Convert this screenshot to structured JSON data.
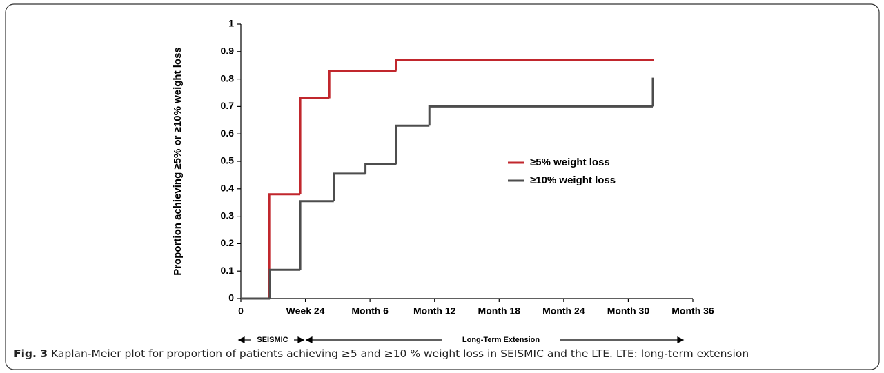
{
  "chart_data": {
    "type": "step",
    "y_label": "Proportion achieving ≥5% or ≥10% weight loss",
    "xlim": [
      0,
      7
    ],
    "xticks": [
      0,
      {
        "value": 1,
        "label": "Week 24"
      },
      {
        "value": 2,
        "label": "Month 6"
      },
      {
        "value": 3,
        "label": "Month 12"
      },
      {
        "value": 4,
        "label": "Month 18"
      },
      {
        "value": 5,
        "label": "Month 24"
      },
      {
        "value": 6,
        "label": "Month 30"
      },
      {
        "value": 7,
        "label": "Month 36"
      }
    ],
    "ylim": [
      0,
      1
    ],
    "yticks": [
      0,
      0.1,
      0.2,
      0.3,
      0.4,
      0.5,
      0.6,
      0.7,
      0.8,
      0.9,
      1
    ],
    "series": [
      {
        "name": "≥5% weight loss",
        "color": "#c1272d",
        "x": [
          0,
          0.44,
          0.92,
          1.37,
          2.41,
          6.4
        ],
        "values": [
          0,
          0.38,
          0.73,
          0.83,
          0.87,
          0.87
        ]
      },
      {
        "name": "≥10% weight loss",
        "color": "#4d4d4d",
        "x": [
          0,
          0.45,
          0.92,
          1.44,
          1.93,
          2.41,
          2.92,
          6.38,
          6.38
        ],
        "values": [
          0,
          0.105,
          0.355,
          0.455,
          0.49,
          0.63,
          0.7,
          0.7,
          0.805
        ]
      }
    ],
    "annotations": [
      "SEISMIC",
      "Long-Term Extension"
    ],
    "caption_label": "Fig. 3",
    "caption": "Kaplan-Meier plot for proportion of patients achieving ≥5 and ≥10 % weight loss in SEISMIC and the LTE. LTE: long-term extension"
  }
}
